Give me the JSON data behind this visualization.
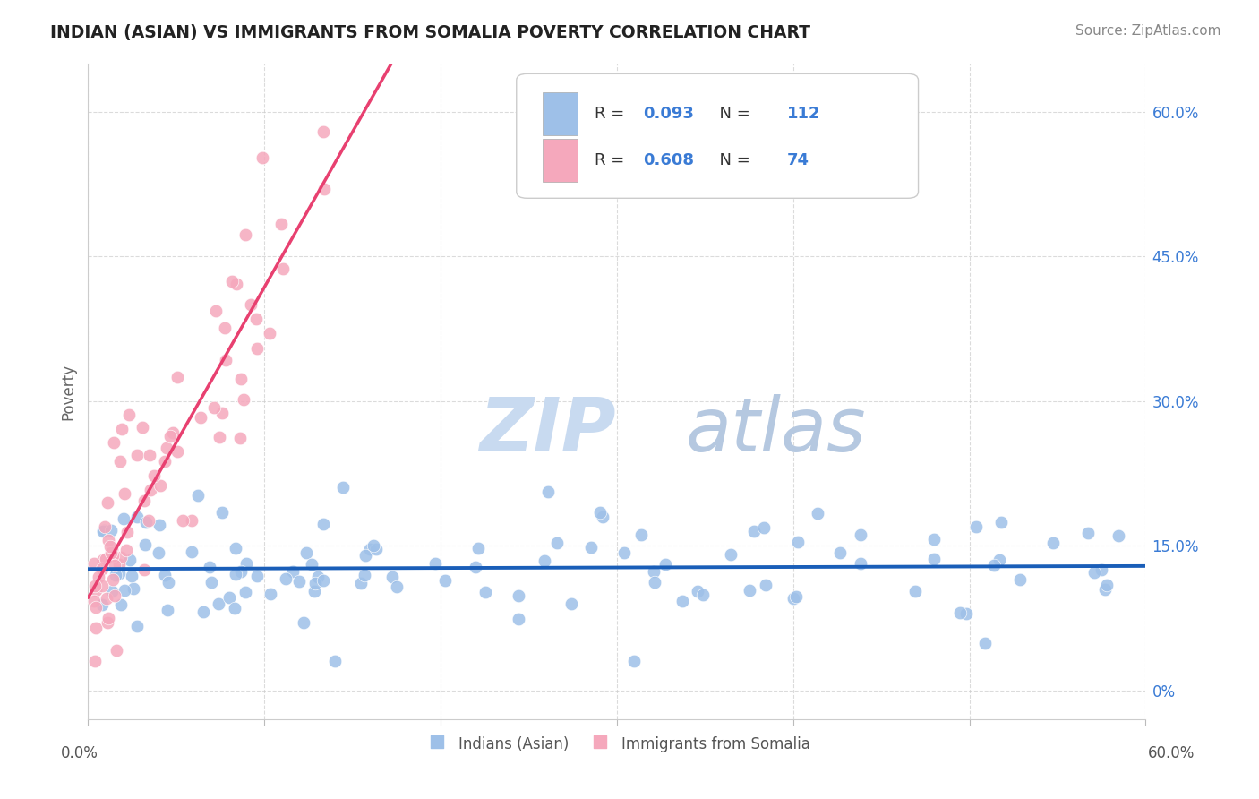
{
  "title": "INDIAN (ASIAN) VS IMMIGRANTS FROM SOMALIA POVERTY CORRELATION CHART",
  "source": "Source: ZipAtlas.com",
  "ylabel": "Poverty",
  "xlim": [
    0,
    60
  ],
  "ylim": [
    -3,
    65
  ],
  "yticks": [
    0,
    15,
    30,
    45,
    60
  ],
  "ytick_right_labels": [
    "0%",
    "15.0%",
    "30.0%",
    "45.0%",
    "60.0%"
  ],
  "blue_R": 0.093,
  "blue_N": 112,
  "pink_R": 0.608,
  "pink_N": 74,
  "blue_scatter_color": "#9ec0e8",
  "pink_scatter_color": "#f5a8bc",
  "blue_line_color": "#1a5eb8",
  "pink_line_color": "#e84070",
  "dashed_line_color": "#cccccc",
  "watermark_zip": "ZIP",
  "watermark_atlas": "atlas",
  "watermark_color_zip": "#c5d8ef",
  "watermark_color_atlas": "#b8ccdf",
  "legend_label_blue": "Indians (Asian)",
  "legend_label_pink": "Immigrants from Somalia",
  "grid_color": "#cccccc",
  "title_color": "#222222",
  "source_color": "#888888",
  "rn_value_color": "#3a7bd5",
  "legend_text_color": "#333333",
  "title_fontsize": 13.5,
  "source_fontsize": 11,
  "axis_label_fontsize": 12,
  "tick_fontsize": 12,
  "legend_fontsize": 12
}
